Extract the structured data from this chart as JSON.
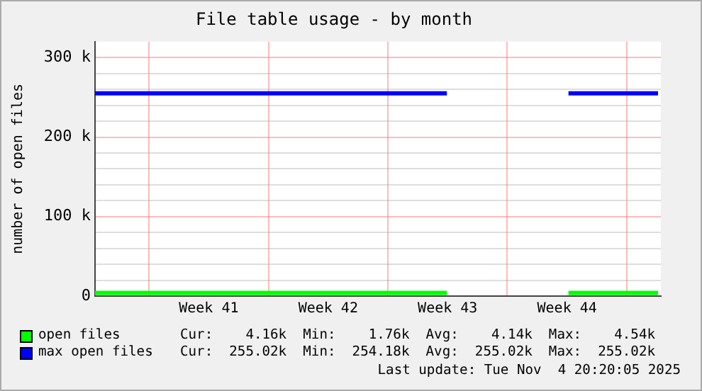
{
  "chart_data": {
    "type": "line",
    "title": "File table usage - by month",
    "ylabel": "number of open files",
    "x": [
      "2025-10-02T20:00",
      "2025-10-23T11:00",
      null,
      "2025-10-30T14:00",
      "2025-11-04T20:00"
    ],
    "series": [
      {
        "name": "open files",
        "color": "#00ff00",
        "values": [
          4000,
          4000,
          null,
          4000,
          4000
        ]
      },
      {
        "name": "max open files",
        "color": "#0000ff",
        "values": [
          255000,
          255000,
          null,
          255000,
          255000
        ]
      }
    ],
    "xlim": [
      "2025-10-02T20:00",
      "2025-11-05T00:00"
    ],
    "xticks": [
      {
        "value": "2025-10-06",
        "label": null
      },
      {
        "value": "2025-10-09T12:00",
        "label": "Week 41"
      },
      {
        "value": "2025-10-13",
        "label": null
      },
      {
        "value": "2025-10-16T12:00",
        "label": "Week 42"
      },
      {
        "value": "2025-10-20",
        "label": null
      },
      {
        "value": "2025-10-23T12:00",
        "label": "Week 43"
      },
      {
        "value": "2025-10-27",
        "label": null
      },
      {
        "value": "2025-10-30T12:00",
        "label": "Week 44"
      },
      {
        "value": "2025-11-03",
        "label": null
      }
    ],
    "ylim": [
      0,
      320000
    ],
    "yticks": [
      {
        "value": 0,
        "label": "0"
      },
      {
        "value": 20000,
        "label": null
      },
      {
        "value": 40000,
        "label": null
      },
      {
        "value": 60000,
        "label": null
      },
      {
        "value": 80000,
        "label": null
      },
      {
        "value": 100000,
        "label": "100 k"
      },
      {
        "value": 120000,
        "label": null
      },
      {
        "value": 140000,
        "label": null
      },
      {
        "value": 160000,
        "label": null
      },
      {
        "value": 180000,
        "label": null
      },
      {
        "value": 200000,
        "label": "200 k"
      },
      {
        "value": 220000,
        "label": null
      },
      {
        "value": 240000,
        "label": null
      },
      {
        "value": 260000,
        "label": null
      },
      {
        "value": 280000,
        "label": null
      },
      {
        "value": 300000,
        "label": "300 k"
      }
    ],
    "grid": true,
    "legend": "bottom",
    "marker": "none",
    "line_style": "solid",
    "annotations": [
      "Cur:    4.16k  Min:    1.76k  Avg:    4.14k  Max:    4.54k",
      "Cur:  255.02k  Min:  254.18k  Avg:  255.02k  Max:  255.02k",
      "Last update: Tue Nov  4 20:20:05 2025"
    ]
  }
}
